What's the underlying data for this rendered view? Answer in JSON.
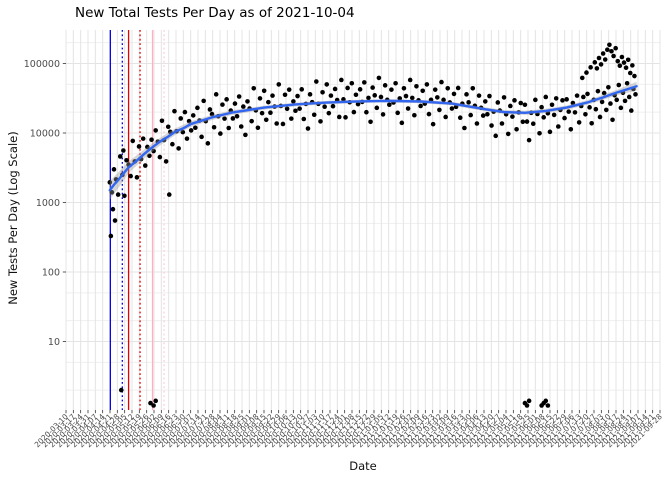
{
  "chart_data": {
    "type": "scatter",
    "title": "New Total Tests Per Day as of 2021-10-04",
    "xlabel": "Date",
    "ylabel": "New Tests Per Day (Log Scale)",
    "y_scale": "log10",
    "ylim": [
      1,
      250000
    ],
    "grid": true,
    "legend": false,
    "y_tick_labels": [
      "10",
      "100",
      "1000",
      "10000",
      "100000"
    ],
    "y_ticks": [
      10,
      100,
      1000,
      10000,
      100000
    ],
    "x_unit": "days since first axis tick",
    "x_tick_labels": [
      "2020-03-10",
      "2020-03-17",
      "2020-03-24",
      "2020-03-31",
      "2020-04-07",
      "2020-04-14",
      "2020-04-21",
      "2020-04-28",
      "2020-05-05",
      "2020-05-12",
      "2020-05-19",
      "2020-05-26",
      "2020-06-02",
      "2020-06-09",
      "2020-06-16",
      "2020-06-23",
      "2020-06-30",
      "2020-07-07",
      "2020-07-14",
      "2020-07-21",
      "2020-07-28",
      "2020-08-04",
      "2020-08-11",
      "2020-08-18",
      "2020-08-25",
      "2020-09-01",
      "2020-09-08",
      "2020-09-15",
      "2020-09-22",
      "2020-09-29",
      "2020-10-06",
      "2020-10-13",
      "2020-10-20",
      "2020-10-27",
      "2020-11-03",
      "2020-11-10",
      "2020-11-17",
      "2020-11-24",
      "2020-12-01",
      "2020-12-08",
      "2020-12-15",
      "2020-12-22",
      "2020-12-29",
      "2021-01-05",
      "2021-01-12",
      "2021-01-19",
      "2021-01-26",
      "2021-02-02",
      "2021-02-09",
      "2021-02-16",
      "2021-02-23",
      "2021-03-02",
      "2021-03-09",
      "2021-03-16",
      "2021-03-23",
      "2021-03-30",
      "2021-04-06",
      "2021-04-13",
      "2021-04-20",
      "2021-04-27",
      "2021-05-04",
      "2021-05-11",
      "2021-05-18",
      "2021-05-25",
      "2021-06-01",
      "2021-06-08",
      "2021-06-15",
      "2021-06-22",
      "2021-06-29",
      "2021-07-06",
      "2021-07-13",
      "2021-07-20",
      "2021-07-27",
      "2021-08-03",
      "2021-08-10",
      "2021-08-17",
      "2021-08-24",
      "2021-08-31",
      "2021-09-07",
      "2021-09-14",
      "2021-09-21",
      "2021-09-28"
    ],
    "vlines": [
      {
        "day": 42.5,
        "style": "solid",
        "color": "#0000E6"
      },
      {
        "day": 54.0,
        "style": "dotted",
        "color": "#0000E6"
      },
      {
        "day": 60.0,
        "style": "solid",
        "color": "#E60000"
      },
      {
        "day": 71.0,
        "style": "dotted",
        "color": "#E60000"
      },
      {
        "day": 83.0,
        "style": "solid",
        "color": "#FFAFC0"
      },
      {
        "day": 94.0,
        "style": "dotted",
        "color": "#FFCBD6"
      }
    ],
    "trend": {
      "name": "loess smooth",
      "color": "#3366EE",
      "points": [
        [
          42,
          1500
        ],
        [
          46,
          1800
        ],
        [
          50,
          2100
        ],
        [
          55,
          2600
        ],
        [
          60,
          3200
        ],
        [
          67,
          3900
        ],
        [
          75,
          5000
        ],
        [
          82,
          6100
        ],
        [
          90,
          7500
        ],
        [
          97,
          8700
        ],
        [
          105,
          10500
        ],
        [
          112,
          11600
        ],
        [
          120,
          13500
        ],
        [
          140,
          16800
        ],
        [
          160,
          19800
        ],
        [
          190,
          23200
        ],
        [
          220,
          25800
        ],
        [
          250,
          27400
        ],
        [
          280,
          28500
        ],
        [
          310,
          29000
        ],
        [
          340,
          28400
        ],
        [
          370,
          26500
        ],
        [
          400,
          22200
        ],
        [
          420,
          20000
        ],
        [
          440,
          19500
        ],
        [
          460,
          20800
        ],
        [
          480,
          23200
        ],
        [
          500,
          27500
        ],
        [
          507,
          29800
        ],
        [
          515,
          32500
        ],
        [
          522,
          35500
        ],
        [
          530,
          39000
        ],
        [
          538,
          42500
        ],
        [
          547,
          47000
        ]
      ]
    },
    "ribbon": [
      [
        42,
        1100,
        2050
      ],
      [
        50,
        1600,
        2700
      ],
      [
        60,
        2650,
        3900
      ],
      [
        75,
        4300,
        5800
      ],
      [
        90,
        6600,
        8500
      ],
      [
        105,
        9400,
        11700
      ],
      [
        120,
        12300,
        14800
      ],
      [
        140,
        15400,
        18200
      ],
      [
        160,
        18300,
        21300
      ],
      [
        190,
        21700,
        24700
      ],
      [
        220,
        24200,
        27400
      ],
      [
        250,
        25900,
        29000
      ],
      [
        280,
        27000,
        30100
      ],
      [
        310,
        27500,
        30600
      ],
      [
        340,
        26900,
        30000
      ],
      [
        370,
        25000,
        28100
      ],
      [
        400,
        20800,
        23700
      ],
      [
        420,
        18700,
        21400
      ],
      [
        440,
        18200,
        20900
      ],
      [
        460,
        19400,
        22300
      ],
      [
        480,
        21600,
        24900
      ],
      [
        500,
        25500,
        29700
      ],
      [
        515,
        30000,
        35300
      ],
      [
        530,
        35500,
        43000
      ],
      [
        547,
        40500,
        54500
      ]
    ],
    "points": [
      [
        42,
        1950
      ],
      [
        43,
        330
      ],
      [
        44,
        1400
      ],
      [
        45,
        800
      ],
      [
        46,
        3000
      ],
      [
        47,
        550
      ],
      [
        48,
        2150
      ],
      [
        50,
        1300
      ],
      [
        52,
        4600
      ],
      [
        53,
        2
      ],
      [
        54,
        2500
      ],
      [
        55,
        5600
      ],
      [
        56,
        1250
      ],
      [
        58,
        4050
      ],
      [
        60,
        3500
      ],
      [
        62,
        2400
      ],
      [
        64,
        7700
      ],
      [
        66,
        3900
      ],
      [
        68,
        2300
      ],
      [
        70,
        6400
      ],
      [
        72,
        4200
      ],
      [
        74,
        8300
      ],
      [
        76,
        3400
      ],
      [
        78,
        6300
      ],
      [
        80,
        4700
      ],
      [
        81,
        1.3
      ],
      [
        82,
        8000
      ],
      [
        84,
        1.2
      ],
      [
        84,
        5500
      ],
      [
        86,
        1.4
      ],
      [
        86,
        10900
      ],
      [
        88,
        7500
      ],
      [
        90,
        4500
      ],
      [
        92,
        15000
      ],
      [
        94,
        7900
      ],
      [
        96,
        3900
      ],
      [
        98,
        12300
      ],
      [
        99,
        1300
      ],
      [
        100,
        10400
      ],
      [
        102,
        6900
      ],
      [
        104,
        20600
      ],
      [
        106,
        10600
      ],
      [
        108,
        6000
      ],
      [
        110,
        16200
      ],
      [
        112,
        10300
      ],
      [
        114,
        20000
      ],
      [
        116,
        8300
      ],
      [
        118,
        14800
      ],
      [
        120,
        10900
      ],
      [
        122,
        17900
      ],
      [
        124,
        11900
      ],
      [
        126,
        23000
      ],
      [
        128,
        15100
      ],
      [
        130,
        8800
      ],
      [
        132,
        29000
      ],
      [
        134,
        14800
      ],
      [
        136,
        7100
      ],
      [
        138,
        21800
      ],
      [
        140,
        18700
      ],
      [
        142,
        12100
      ],
      [
        144,
        36000
      ],
      [
        146,
        17400
      ],
      [
        148,
        9800
      ],
      [
        150,
        25600
      ],
      [
        152,
        16100
      ],
      [
        154,
        30500
      ],
      [
        156,
        11800
      ],
      [
        158,
        21000
      ],
      [
        160,
        16200
      ],
      [
        162,
        26500
      ],
      [
        164,
        17400
      ],
      [
        166,
        33500
      ],
      [
        168,
        12400
      ],
      [
        170,
        24000
      ],
      [
        172,
        9400
      ],
      [
        174,
        28500
      ],
      [
        176,
        22500
      ],
      [
        178,
        14800
      ],
      [
        180,
        44000
      ],
      [
        182,
        21200
      ],
      [
        184,
        11900
      ],
      [
        186,
        31500
      ],
      [
        188,
        19300
      ],
      [
        190,
        40500
      ],
      [
        192,
        15500
      ],
      [
        194,
        27800
      ],
      [
        196,
        19600
      ],
      [
        198,
        34500
      ],
      [
        200,
        24000
      ],
      [
        202,
        13700
      ],
      [
        204,
        50000
      ],
      [
        206,
        24500
      ],
      [
        208,
        13500
      ],
      [
        210,
        35500
      ],
      [
        212,
        22300
      ],
      [
        214,
        42000
      ],
      [
        216,
        16100
      ],
      [
        218,
        28500
      ],
      [
        220,
        20900
      ],
      [
        222,
        34000
      ],
      [
        224,
        22400
      ],
      [
        226,
        42500
      ],
      [
        228,
        15900
      ],
      [
        230,
        26200
      ],
      [
        232,
        11600
      ],
      [
        234,
        36000
      ],
      [
        236,
        27800
      ],
      [
        238,
        18300
      ],
      [
        240,
        55000
      ],
      [
        242,
        26300
      ],
      [
        244,
        14700
      ],
      [
        246,
        38500
      ],
      [
        248,
        23900
      ],
      [
        250,
        50000
      ],
      [
        252,
        19300
      ],
      [
        254,
        34500
      ],
      [
        256,
        24300
      ],
      [
        258,
        43000
      ],
      [
        260,
        29800
      ],
      [
        262,
        17000
      ],
      [
        264,
        58000
      ],
      [
        266,
        30500
      ],
      [
        268,
        16800
      ],
      [
        270,
        44500
      ],
      [
        272,
        27700
      ],
      [
        274,
        52000
      ],
      [
        276,
        20000
      ],
      [
        278,
        35500
      ],
      [
        280,
        26000
      ],
      [
        282,
        42500
      ],
      [
        284,
        28000
      ],
      [
        286,
        53500
      ],
      [
        288,
        19900
      ],
      [
        290,
        32000
      ],
      [
        292,
        14500
      ],
      [
        294,
        45000
      ],
      [
        296,
        34800
      ],
      [
        298,
        23000
      ],
      [
        300,
        62000
      ],
      [
        302,
        33000
      ],
      [
        304,
        18500
      ],
      [
        306,
        48500
      ],
      [
        308,
        30000
      ],
      [
        310,
        25500
      ],
      [
        312,
        42000
      ],
      [
        314,
        27500
      ],
      [
        316,
        52000
      ],
      [
        318,
        19500
      ],
      [
        320,
        31500
      ],
      [
        322,
        14000
      ],
      [
        324,
        44000
      ],
      [
        326,
        34000
      ],
      [
        328,
        22500
      ],
      [
        330,
        58000
      ],
      [
        332,
        32000
      ],
      [
        334,
        18000
      ],
      [
        336,
        47000
      ],
      [
        338,
        29500
      ],
      [
        340,
        24500
      ],
      [
        342,
        40500
      ],
      [
        344,
        26500
      ],
      [
        346,
        50000
      ],
      [
        348,
        18700
      ],
      [
        350,
        30000
      ],
      [
        352,
        13400
      ],
      [
        354,
        42000
      ],
      [
        356,
        32500
      ],
      [
        358,
        21500
      ],
      [
        360,
        54000
      ],
      [
        362,
        30000
      ],
      [
        364,
        17000
      ],
      [
        366,
        44000
      ],
      [
        368,
        27500
      ],
      [
        370,
        22500
      ],
      [
        372,
        36500
      ],
      [
        374,
        23800
      ],
      [
        376,
        44500
      ],
      [
        378,
        16600
      ],
      [
        380,
        26400
      ],
      [
        382,
        11800
      ],
      [
        384,
        36000
      ],
      [
        386,
        27600
      ],
      [
        388,
        18100
      ],
      [
        390,
        44000
      ],
      [
        392,
        24600
      ],
      [
        394,
        13700
      ],
      [
        396,
        34500
      ],
      [
        398,
        23000
      ],
      [
        400,
        17800
      ],
      [
        402,
        28500
      ],
      [
        404,
        18600
      ],
      [
        406,
        34000
      ],
      [
        408,
        12800
      ],
      [
        410,
        20300
      ],
      [
        412,
        9100
      ],
      [
        414,
        27500
      ],
      [
        416,
        21000
      ],
      [
        418,
        13700
      ],
      [
        420,
        32500
      ],
      [
        422,
        18600
      ],
      [
        424,
        9700
      ],
      [
        426,
        24500
      ],
      [
        428,
        17200
      ],
      [
        430,
        29500
      ],
      [
        432,
        11300
      ],
      [
        434,
        19800
      ],
      [
        436,
        27000
      ],
      [
        438,
        14500
      ],
      [
        440,
        1.3
      ],
      [
        440,
        25500
      ],
      [
        442,
        1.2
      ],
      [
        442,
        14600
      ],
      [
        444,
        1.4
      ],
      [
        444,
        7900
      ],
      [
        446,
        19500
      ],
      [
        448,
        13600
      ],
      [
        450,
        30000
      ],
      [
        452,
        18800
      ],
      [
        454,
        9900
      ],
      [
        456,
        1.2
      ],
      [
        456,
        23500
      ],
      [
        458,
        1.3
      ],
      [
        458,
        16800
      ],
      [
        460,
        1.4
      ],
      [
        460,
        33000
      ],
      [
        462,
        1.2
      ],
      [
        462,
        19200
      ],
      [
        464,
        10400
      ],
      [
        466,
        25500
      ],
      [
        468,
        18200
      ],
      [
        470,
        31500
      ],
      [
        472,
        12400
      ],
      [
        474,
        21500
      ],
      [
        476,
        29500
      ],
      [
        478,
        16400
      ],
      [
        480,
        30500
      ],
      [
        482,
        20300
      ],
      [
        484,
        11300
      ],
      [
        486,
        27000
      ],
      [
        488,
        19800
      ],
      [
        490,
        34500
      ],
      [
        492,
        14200
      ],
      [
        494,
        24500
      ],
      [
        495,
        62000
      ],
      [
        496,
        33000
      ],
      [
        498,
        18600
      ],
      [
        499,
        74000
      ],
      [
        500,
        36500
      ],
      [
        502,
        23400
      ],
      [
        503,
        88000
      ],
      [
        504,
        13800
      ],
      [
        506,
        30000
      ],
      [
        507,
        104000
      ],
      [
        508,
        22000
      ],
      [
        509,
        85000
      ],
      [
        510,
        40000
      ],
      [
        511,
        120000
      ],
      [
        512,
        17000
      ],
      [
        513,
        97000
      ],
      [
        514,
        28000
      ],
      [
        515,
        139000
      ],
      [
        516,
        37500
      ],
      [
        517,
        114000
      ],
      [
        518,
        21500
      ],
      [
        519,
        158000
      ],
      [
        520,
        45500
      ],
      [
        521,
        186000
      ],
      [
        522,
        26500
      ],
      [
        523,
        150000
      ],
      [
        524,
        15500
      ],
      [
        525,
        128000
      ],
      [
        526,
        35000
      ],
      [
        527,
        166000
      ],
      [
        528,
        30000
      ],
      [
        529,
        108000
      ],
      [
        530,
        49000
      ],
      [
        531,
        93000
      ],
      [
        532,
        23000
      ],
      [
        533,
        124000
      ],
      [
        534,
        38000
      ],
      [
        535,
        103000
      ],
      [
        536,
        29000
      ],
      [
        537,
        87000
      ],
      [
        538,
        52000
      ],
      [
        539,
        113000
      ],
      [
        540,
        33000
      ],
      [
        541,
        73000
      ],
      [
        542,
        21000
      ],
      [
        543,
        94000
      ],
      [
        544,
        43000
      ],
      [
        545,
        66000
      ],
      [
        546,
        36000
      ]
    ],
    "colors": {
      "point": "#000000",
      "smooth_line": "#3366EE",
      "ribbon": "#999999",
      "grid_major": "#E4E4E4",
      "grid_minor": "#EFEFEF",
      "tick_label": "#4D4D4D",
      "tick_mark": "#333333",
      "background": "#FFFFFF"
    }
  }
}
